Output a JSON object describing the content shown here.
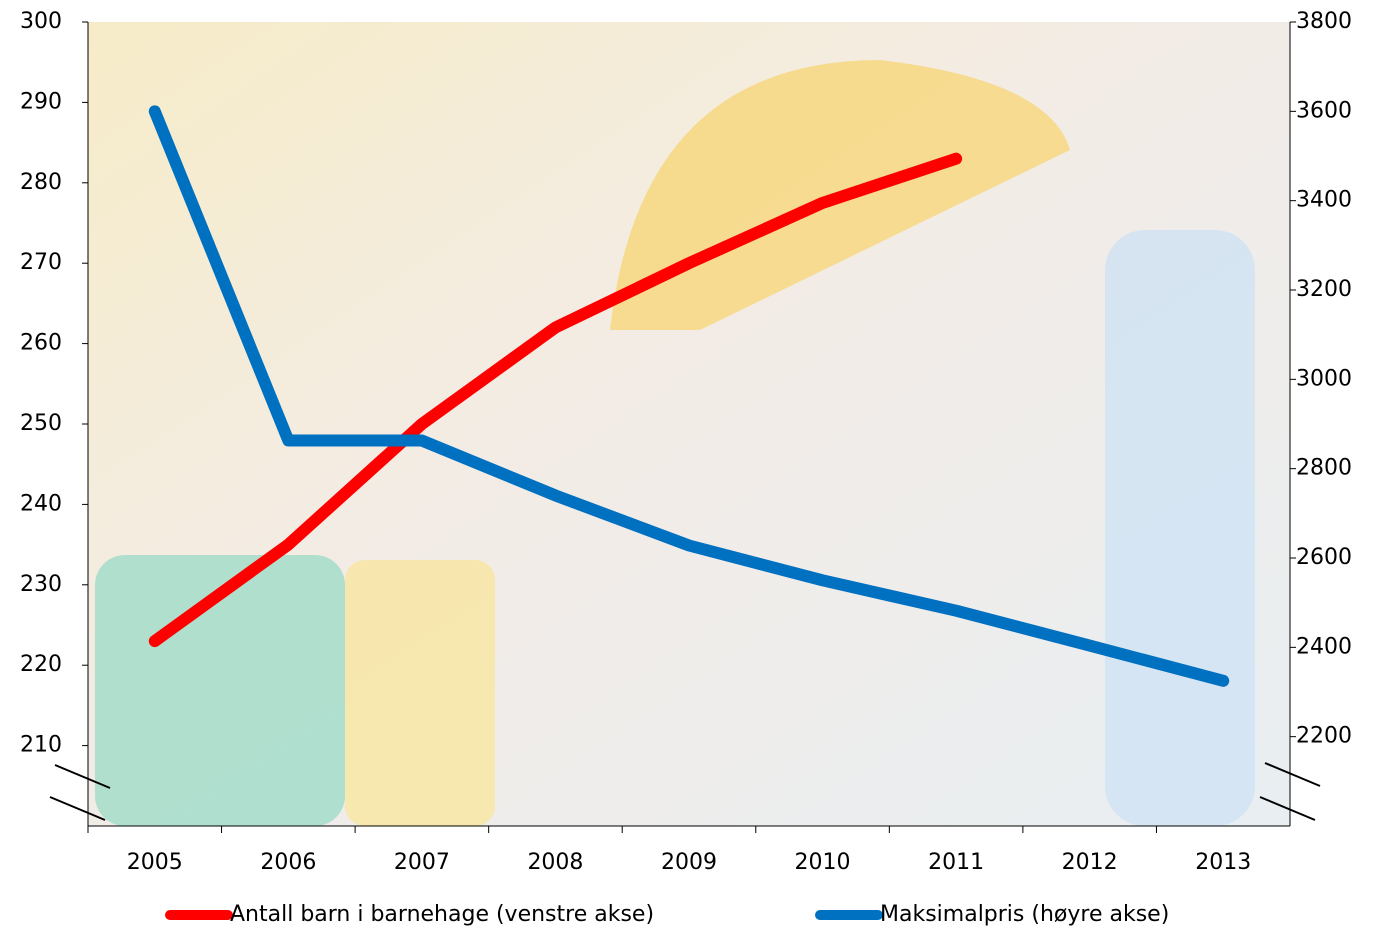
{
  "chart_data": {
    "type": "line",
    "categories": [
      "2005",
      "2006",
      "2007",
      "2008",
      "2009",
      "2010",
      "2011",
      "2012",
      "2013"
    ],
    "series": [
      {
        "name": "Antall barn i barnehage (venstre akse)",
        "color": "#ff0000",
        "values": [
          223,
          235,
          250,
          262,
          270,
          277.5,
          283,
          null,
          null
        ]
      },
      {
        "name": "Maksimalpris (høyre akse)",
        "color": "#0070c0",
        "axis": "y2",
        "values": [
          3600,
          2863,
          2863,
          2740,
          2628,
          2550,
          2482,
          2404,
          2325
        ]
      }
    ],
    "ylim": [
      200,
      300
    ],
    "yticks": [
      210,
      220,
      230,
      240,
      250,
      260,
      270,
      280,
      290,
      300
    ],
    "y2lim": [
      2000,
      3800
    ],
    "y2ticks": [
      2200,
      2400,
      2600,
      2800,
      3000,
      3200,
      3400,
      3600,
      3800
    ]
  }
}
